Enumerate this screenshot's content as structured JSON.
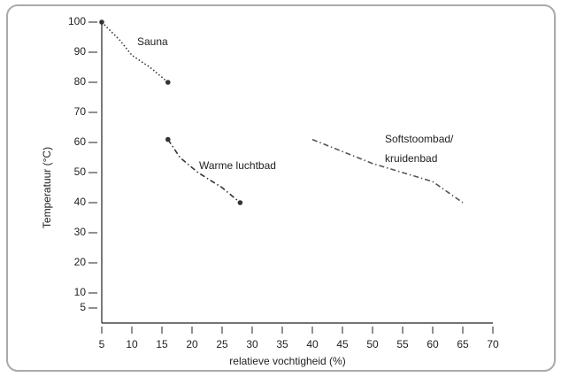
{
  "chart_data": {
    "type": "line",
    "xlabel": "relatieve vochtigheid (%)",
    "ylabel": "Temperatuur (°C)",
    "xlim": [
      5,
      70
    ],
    "xticks": [
      5,
      10,
      15,
      20,
      25,
      30,
      35,
      40,
      45,
      50,
      55,
      60,
      65,
      70
    ],
    "ylim": [
      5,
      100
    ],
    "yticks": [
      100,
      90,
      80,
      70,
      60,
      50,
      40,
      30,
      20,
      10,
      5
    ],
    "series": [
      {
        "name": "Sauna",
        "color": "#333333",
        "dash": "dotted",
        "end_markers": true,
        "x": [
          5,
          8,
          10,
          13,
          16
        ],
        "values": [
          100,
          94,
          89,
          85,
          80
        ]
      },
      {
        "name": "Warme luchtbad",
        "color": "#333333",
        "dash": "dashdot",
        "end_markers": true,
        "x": [
          16,
          18,
          21,
          25,
          28
        ],
        "values": [
          61,
          55,
          50,
          45,
          40
        ]
      },
      {
        "name": "Softstoombad/ kruidenbad",
        "color": "#555555",
        "dash": "dashdot",
        "end_markers": false,
        "x": [
          40,
          45,
          50,
          55,
          60,
          65
        ],
        "values": [
          61,
          57,
          53,
          50,
          47,
          40
        ]
      }
    ]
  }
}
